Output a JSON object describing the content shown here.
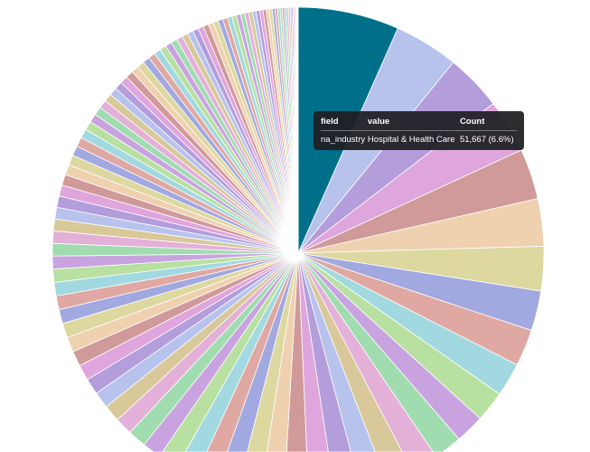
{
  "chart_data": {
    "type": "pie",
    "start_angle": "12 o'clock, clockwise",
    "slice_percent": [
      6.6,
      4.2,
      3.7,
      3.5,
      3.3,
      3.1,
      2.9,
      2.6,
      2.4,
      2.2,
      2.0,
      1.9,
      1.85,
      1.8,
      1.78,
      1.75,
      1.72,
      1.7,
      1.6,
      1.55,
      1.5,
      1.45,
      1.4,
      1.35,
      1.3,
      1.25,
      1.2,
      1.15,
      1.1,
      1.08,
      1.05,
      1.02,
      1.0,
      0.98,
      0.95,
      0.92,
      0.9,
      0.88,
      0.86,
      0.84,
      0.82,
      0.8,
      0.78,
      0.76,
      0.74,
      0.72,
      0.7,
      0.68,
      0.66,
      0.64,
      0.62,
      0.6,
      0.58,
      0.56,
      0.55,
      0.54,
      0.53,
      0.52,
      0.51,
      0.5,
      0.49,
      0.48,
      0.47,
      0.46,
      0.45,
      0.44,
      0.43,
      0.42,
      0.41,
      0.4,
      0.39,
      0.38,
      0.37,
      0.36,
      0.35,
      0.34,
      0.33,
      0.32,
      0.31,
      0.3,
      0.29,
      0.28,
      0.27,
      0.26,
      0.25,
      0.24,
      0.23,
      0.22,
      0.21,
      0.2,
      0.19,
      0.18,
      0.17,
      0.16,
      0.15,
      0.14,
      0.13,
      0.12,
      0.11,
      0.1,
      0.09,
      0.08,
      0.07,
      0.06,
      0.05,
      0.04,
      0.03
    ],
    "first_slice_color": "#006f8a",
    "palette": [
      "#b7c3ec",
      "#b39ddb",
      "#dea6dc",
      "#d09a9a",
      "#efd1b0",
      "#ddd8a0",
      "#a2a8e0",
      "#e0a8a3",
      "#a2d8e0",
      "#b8e0a0",
      "#c9a3e0",
      "#a0dcb0",
      "#e3b0d8",
      "#d8c89a"
    ]
  },
  "tooltip": {
    "headers": {
      "field": "field",
      "value": "value",
      "count": "Count"
    },
    "row": {
      "field": "na_industry",
      "value": "Hospital & Health Care",
      "count": "51,667 (6.6%)"
    }
  }
}
